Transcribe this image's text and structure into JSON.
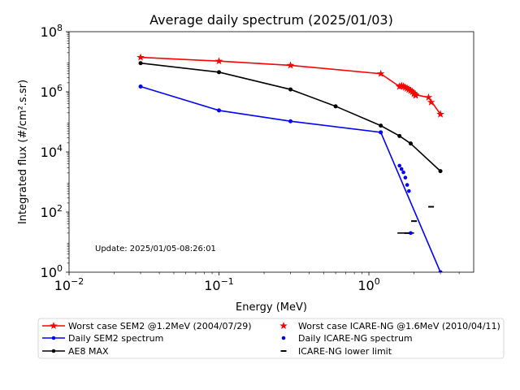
{
  "chart_data": {
    "type": "line",
    "title": "Average daily spectrum (2025/01/03)",
    "xlabel": "Energy (MeV)",
    "ylabel": "Integrated flux (#/cm².s.sr)",
    "xscale": "log",
    "yscale": "log",
    "xlim": [
      0.01,
      5
    ],
    "ylim": [
      1,
      100000000
    ],
    "x_ticks": [
      {
        "value": 0.01,
        "base": "10",
        "exp": "−2"
      },
      {
        "value": 0.1,
        "base": "10",
        "exp": "−1"
      },
      {
        "value": 1,
        "base": "10",
        "exp": "0"
      }
    ],
    "y_ticks": [
      {
        "value": 1,
        "base": "10",
        "exp": "0"
      },
      {
        "value": 100,
        "base": "10",
        "exp": "2"
      },
      {
        "value": 10000,
        "base": "10",
        "exp": "4"
      },
      {
        "value": 1000000,
        "base": "10",
        "exp": "6"
      },
      {
        "value": 100000000,
        "base": "10",
        "exp": "8"
      }
    ],
    "annotation": "Update: 2025/01/05-08:26:01",
    "grid": false,
    "legend_position": "bottom",
    "series": [
      {
        "name": "Worst case SEM2 @1.2MeV (2004/07/29)",
        "color": "#ff0000",
        "style": "line",
        "marker": "star",
        "x": [
          0.03,
          0.1,
          0.3,
          1.2,
          1.6,
          1.65,
          1.7,
          1.75,
          1.8,
          1.85,
          1.9,
          1.95,
          2.0,
          2.05,
          2.5,
          3.0
        ],
        "y": [
          14000000,
          10500000,
          7600000,
          4000000,
          1500000,
          1600000,
          1500000,
          1400000,
          1300000,
          1200000,
          1100000,
          1000000,
          900000,
          800000,
          650000,
          180000
        ]
      },
      {
        "name": "Daily SEM2 spectrum",
        "color": "#0000ff",
        "style": "line",
        "marker": "dot",
        "x": [
          0.03,
          0.1,
          0.3,
          1.2,
          3.0
        ],
        "y": [
          1500000,
          240000,
          105000,
          45000,
          1
        ]
      },
      {
        "name": "AE8 MAX",
        "color": "#000000",
        "style": "line",
        "marker": "dot",
        "x": [
          0.03,
          0.1,
          0.3,
          0.6,
          1.2,
          1.6,
          1.9,
          3.0
        ],
        "y": [
          9000000,
          4500000,
          1200000,
          330000,
          75000,
          34000,
          19000,
          2300
        ]
      },
      {
        "name": "Worst case ICARE-NG @1.6MeV (2010/04/11)",
        "color": "#ff0000",
        "style": "scatter",
        "marker": "star",
        "x": [
          1.6,
          1.65,
          1.7,
          1.75,
          1.8,
          1.85,
          1.9,
          1.95,
          2.0,
          2.05,
          2.6,
          3.0
        ],
        "y": [
          1500000,
          1600000,
          1500000,
          1400000,
          1300000,
          1200000,
          1100000,
          1000000,
          850000,
          750000,
          450000,
          180000
        ]
      },
      {
        "name": "Daily ICARE-NG spectrum",
        "color": "#0000ff",
        "style": "scatter",
        "marker": "dot",
        "x": [
          1.6,
          1.65,
          1.7,
          1.75,
          1.8,
          1.85,
          1.9
        ],
        "y": [
          3500,
          2700,
          2100,
          1400,
          800,
          500,
          20
        ]
      },
      {
        "name": "ICARE-NG lower limit",
        "color": "#000000",
        "style": "scatter",
        "marker": "hline",
        "x": [
          1.8,
          2.0,
          2.6
        ],
        "y": [
          20,
          50,
          150
        ]
      }
    ],
    "extras": [
      {
        "type": "segment",
        "color": "#000000",
        "x": [
          1.55,
          2.0
        ],
        "y": [
          20,
          20
        ]
      }
    ]
  }
}
